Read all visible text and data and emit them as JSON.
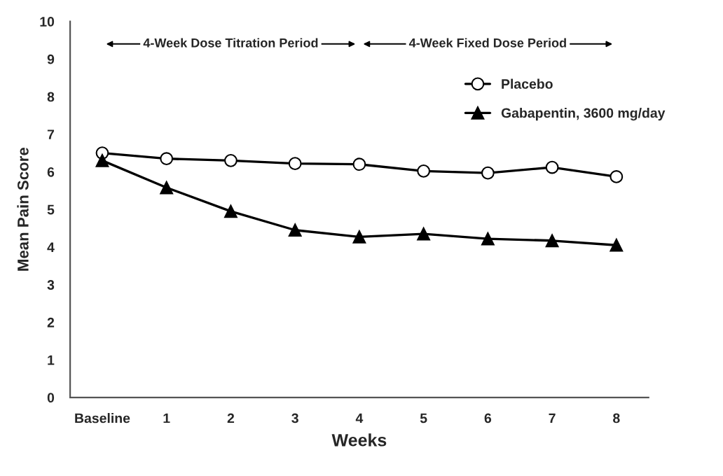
{
  "chart_data": {
    "type": "line",
    "xlabel": "Weeks",
    "ylabel": "Mean Pain Score",
    "categories": [
      "Baseline",
      "1",
      "2",
      "3",
      "4",
      "5",
      "6",
      "7",
      "8"
    ],
    "series": [
      {
        "name": "Placebo",
        "color": "#000000",
        "marker": "circle",
        "values": [
          6.5,
          6.35,
          6.3,
          6.22,
          6.2,
          6.02,
          5.97,
          6.12,
          5.87
        ]
      },
      {
        "name": "Gabapentin, 3600 mg/day",
        "color": "#000000",
        "marker": "triangle",
        "values": [
          6.3,
          5.58,
          4.95,
          4.45,
          4.27,
          4.35,
          4.22,
          4.17,
          4.05
        ]
      }
    ],
    "ylim": [
      0,
      10
    ],
    "yticks": [
      0,
      1,
      2,
      3,
      4,
      5,
      6,
      7,
      8,
      9,
      10
    ],
    "annotations": [
      "4-Week Dose Titration Period",
      "4-Week Fixed Dose Period"
    ],
    "grid": false,
    "legend": "top right",
    "line_style": "solid"
  }
}
